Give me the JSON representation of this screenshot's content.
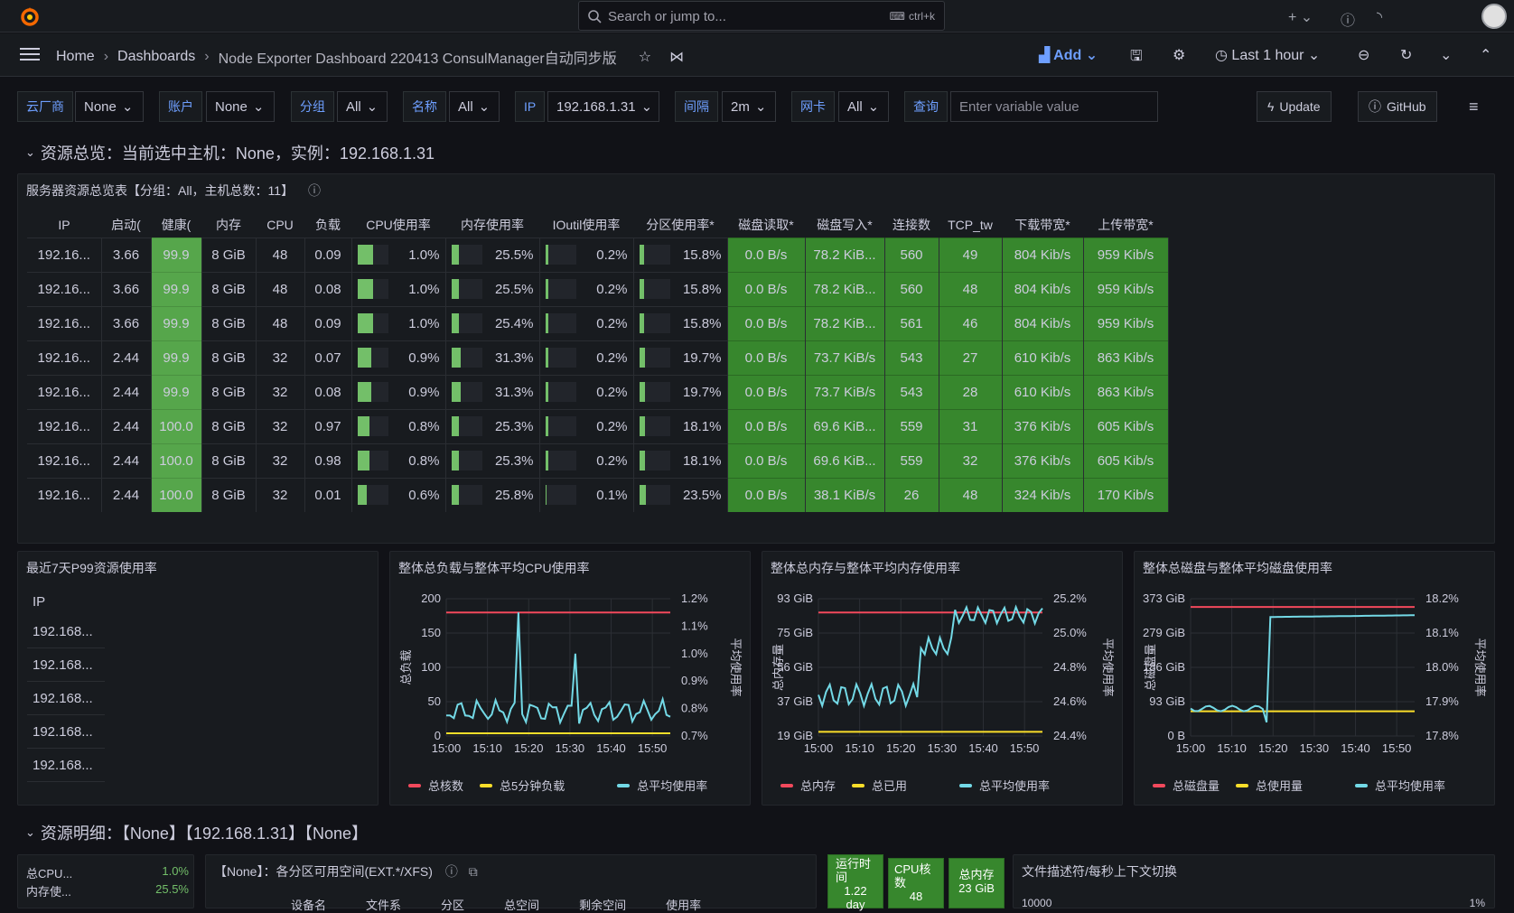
{
  "topbar": {
    "search_placeholder": "Search or jump to...",
    "shortcut": "ctrl+k"
  },
  "breadcrumb": {
    "home": "Home",
    "dashboards": "Dashboards",
    "current": "Node Exporter Dashboard 220413 ConsulManager自动同步版"
  },
  "toolbar": {
    "add": "Add",
    "time_range": "Last 1 hour"
  },
  "variables": [
    {
      "label": "云厂商",
      "value": "None"
    },
    {
      "label": "账户",
      "value": "None"
    },
    {
      "label": "分组",
      "value": "All"
    },
    {
      "label": "名称",
      "value": "All"
    },
    {
      "label": "IP",
      "value": "192.168.1.31"
    },
    {
      "label": "间隔",
      "value": "2m"
    },
    {
      "label": "网卡",
      "value": "All"
    },
    {
      "label": "查询",
      "placeholder": "Enter variable value"
    }
  ],
  "buttons": {
    "update": "Update",
    "github": "GitHub"
  },
  "row1": {
    "title": "资源总览：当前选中主机：None，实例：192.168.1.31"
  },
  "overview": {
    "title": "服务器资源总览表【分组：All，主机总数：11】",
    "columns": [
      "IP",
      "启动(",
      "健康(",
      "内存",
      "CPU",
      "负载",
      "CPU使用率",
      "内存使用率",
      "IOutil使用率",
      "分区使用率*",
      "磁盘读取*",
      "磁盘写入*",
      "连接数",
      "TCP_tw",
      "下载带宽*",
      "上传带宽*"
    ],
    "rows": [
      [
        "192.16...",
        "3.66",
        "99.9",
        "8 GiB",
        "48",
        "0.09",
        "1.0%",
        "25.5%",
        "0.2%",
        "15.8%",
        "0.0 B/s",
        "78.2 KiB...",
        "560",
        "49",
        "804 Kib/s",
        "959 Kib/s"
      ],
      [
        "192.16...",
        "3.66",
        "99.9",
        "8 GiB",
        "48",
        "0.08",
        "1.0%",
        "25.5%",
        "0.2%",
        "15.8%",
        "0.0 B/s",
        "78.2 KiB...",
        "560",
        "48",
        "804 Kib/s",
        "959 Kib/s"
      ],
      [
        "192.16...",
        "3.66",
        "99.9",
        "8 GiB",
        "48",
        "0.09",
        "1.0%",
        "25.4%",
        "0.2%",
        "15.8%",
        "0.0 B/s",
        "78.2 KiB...",
        "561",
        "46",
        "804 Kib/s",
        "959 Kib/s"
      ],
      [
        "192.16...",
        "2.44",
        "99.9",
        "8 GiB",
        "32",
        "0.07",
        "0.9%",
        "31.3%",
        "0.2%",
        "19.7%",
        "0.0 B/s",
        "73.7 KiB/s",
        "543",
        "27",
        "610 Kib/s",
        "863 Kib/s"
      ],
      [
        "192.16...",
        "2.44",
        "99.9",
        "8 GiB",
        "32",
        "0.08",
        "0.9%",
        "31.3%",
        "0.2%",
        "19.7%",
        "0.0 B/s",
        "73.7 KiB/s",
        "543",
        "28",
        "610 Kib/s",
        "863 Kib/s"
      ],
      [
        "192.16...",
        "2.44",
        "100.0",
        "8 GiB",
        "32",
        "0.97",
        "0.8%",
        "25.3%",
        "0.2%",
        "18.1%",
        "0.0 B/s",
        "69.6 KiB...",
        "559",
        "31",
        "376 Kib/s",
        "605 Kib/s"
      ],
      [
        "192.16...",
        "2.44",
        "100.0",
        "8 GiB",
        "32",
        "0.98",
        "0.8%",
        "25.3%",
        "0.2%",
        "18.1%",
        "0.0 B/s",
        "69.6 KiB...",
        "559",
        "32",
        "376 Kib/s",
        "605 Kib/s"
      ],
      [
        "192.16...",
        "2.44",
        "100.0",
        "8 GiB",
        "32",
        "0.01",
        "0.6%",
        "25.8%",
        "0.1%",
        "23.5%",
        "0.0 B/s",
        "38.1 KiB/s",
        "26",
        "48",
        "324 Kib/s",
        "170 Kib/s"
      ]
    ]
  },
  "p99": {
    "title": "最近7天P99资源使用率",
    "header": "IP",
    "rows": [
      "192.168...",
      "192.168...",
      "192.168...",
      "192.168...",
      "192.168..."
    ]
  },
  "charts": [
    {
      "title": "整体总负载与整体平均CPU使用率",
      "left_ticks": [
        "200",
        "150",
        "100",
        "50",
        "0"
      ],
      "right_ticks": [
        "1.2%",
        "1.1%",
        "1.0%",
        "0.9%",
        "0.8%",
        "0.7%"
      ],
      "left_label": "总负载",
      "right_label": "平均使用率",
      "legend": [
        "总核数",
        "总5分钟负载",
        "总平均使用率"
      ]
    },
    {
      "title": "整体总内存与整体平均内存使用率",
      "left_ticks": [
        "93 GiB",
        "75 GiB",
        "56 GiB",
        "37 GiB",
        "19 GiB"
      ],
      "right_ticks": [
        "25.2%",
        "25.0%",
        "24.8%",
        "24.6%",
        "24.4%"
      ],
      "left_label": "总内存量",
      "right_label": "平均使用率",
      "legend": [
        "总内存",
        "总已用",
        "总平均使用率"
      ]
    },
    {
      "title": "整体总磁盘与整体平均磁盘使用率",
      "left_ticks": [
        "373 GiB",
        "279 GiB",
        "186 GiB",
        "93 GiB",
        "0 B"
      ],
      "right_ticks": [
        "18.2%",
        "18.1%",
        "18.0%",
        "17.9%",
        "17.8%"
      ],
      "left_label": "总磁盘量",
      "right_label": "平均使用率",
      "legend": [
        "总磁盘量",
        "总使用量",
        "总平均使用率"
      ]
    }
  ],
  "x_ticks": [
    "15:00",
    "15:10",
    "15:20",
    "15:30",
    "15:40",
    "15:50"
  ],
  "row2": {
    "title": "资源明细：【None】【192.168.1.31】【None】"
  },
  "detail": {
    "cpu_label": "总CPU...",
    "cpu_value": "1.0%",
    "mem_label": "内存使...",
    "mem_value": "25.5%",
    "partition_title": "【None】：各分区可用空间(EXT.*/XFS)",
    "partition_cols": [
      "设备名",
      "文件系",
      "分区",
      "总空间",
      "剩余空间",
      "使用率"
    ],
    "uptime_label": "运行时间",
    "uptime_value": "1.22 day",
    "cores_label": "CPU核数",
    "cores_value": "48",
    "mem_total_label": "总内存",
    "mem_total_value": "23 GiB",
    "fd_title": "文件描述符/每秒上下文切换",
    "fd_left_tick": "10000",
    "fd_right_tick": "1%"
  },
  "colors": {
    "red": "#f2495c",
    "yellow": "#fade2a",
    "cyan": "#73d9e6",
    "green": "#37872d",
    "blue": "#5794f2"
  }
}
